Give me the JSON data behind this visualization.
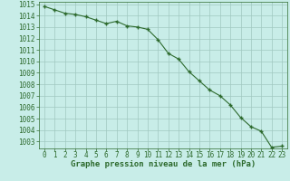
{
  "x": [
    0,
    1,
    2,
    3,
    4,
    5,
    6,
    7,
    8,
    9,
    10,
    11,
    12,
    13,
    14,
    15,
    16,
    17,
    18,
    19,
    20,
    21,
    22,
    23
  ],
  "y": [
    1014.8,
    1014.5,
    1014.2,
    1014.1,
    1013.9,
    1013.6,
    1013.3,
    1013.5,
    1013.1,
    1013.0,
    1012.8,
    1011.9,
    1010.7,
    1010.2,
    1009.1,
    1008.3,
    1007.5,
    1007.0,
    1006.2,
    1005.1,
    1004.3,
    1003.9,
    1002.5,
    1002.6
  ],
  "line_color": "#2d6a2d",
  "marker": "+",
  "marker_size": 3,
  "bg_color": "#c8ede8",
  "grid_color": "#a0c8c0",
  "tick_label_color": "#2d6a2d",
  "xlabel": "Graphe pression niveau de la mer (hPa)",
  "ylim": [
    1002.4,
    1015.2
  ],
  "xlim": [
    -0.5,
    23.5
  ],
  "yticks": [
    1003,
    1004,
    1005,
    1006,
    1007,
    1008,
    1009,
    1010,
    1011,
    1012,
    1013,
    1014,
    1015
  ],
  "xticks": [
    0,
    1,
    2,
    3,
    4,
    5,
    6,
    7,
    8,
    9,
    10,
    11,
    12,
    13,
    14,
    15,
    16,
    17,
    18,
    19,
    20,
    21,
    22,
    23
  ],
  "font_name": "monospace",
  "xlabel_fontsize": 6.5,
  "tick_fontsize": 5.5,
  "linewidth": 0.8
}
